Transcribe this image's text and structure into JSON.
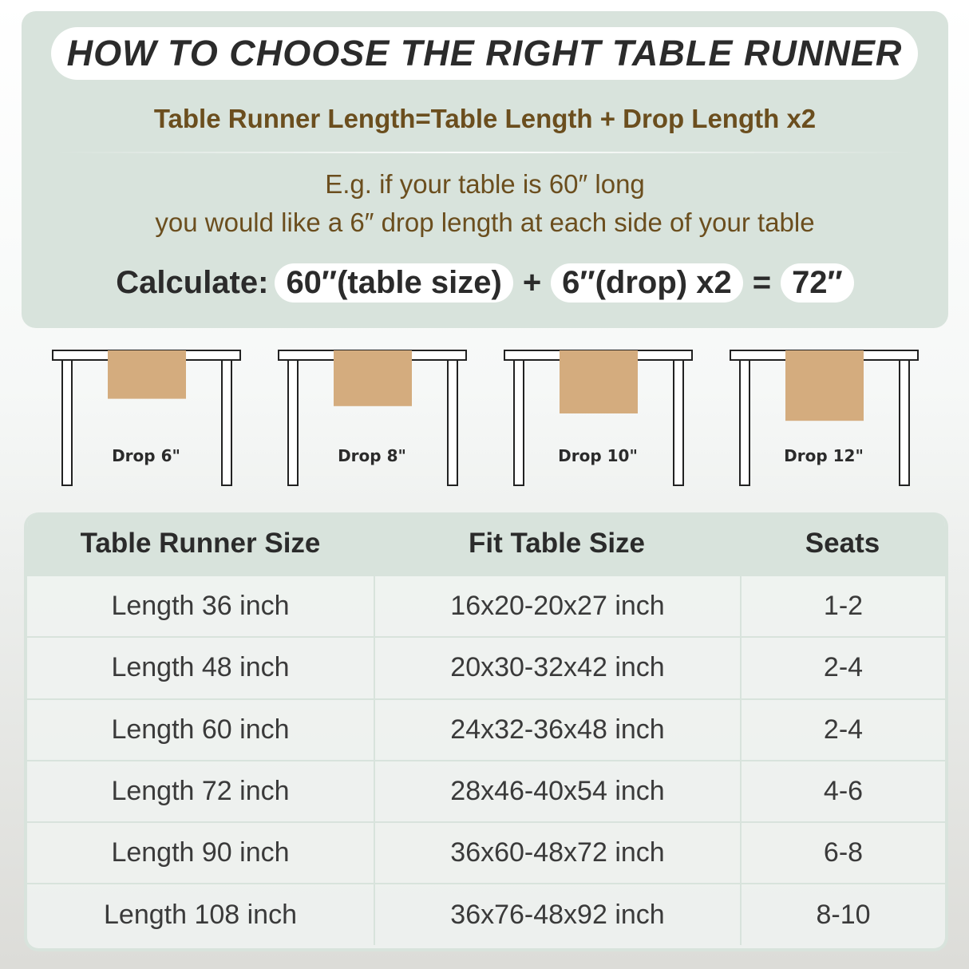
{
  "title": "HOW TO CHOOSE THE RIGHT TABLE RUNNER",
  "formula": "Table Runner Length=Table Length + Drop Length x2",
  "example": {
    "line1": "E.g. if your table is 60″ long",
    "line2": "you would like a 6″ drop length at each side of your table"
  },
  "calculate": {
    "label": "Calculate:",
    "table": "60″(table size)",
    "plus": "+",
    "drop": "6″(drop) x2",
    "equals": "=",
    "result": "72″"
  },
  "colors": {
    "panel": "#d8e3dc",
    "runner": "#d4ac7e",
    "brown_text": "#6b4e1e"
  },
  "drops": [
    {
      "label": "Drop 6\"",
      "inches": 6
    },
    {
      "label": "Drop 8\"",
      "inches": 8
    },
    {
      "label": "Drop 10\"",
      "inches": 10
    },
    {
      "label": "Drop 12\"",
      "inches": 12
    }
  ],
  "table": {
    "headers": [
      "Table Runner Size",
      "Fit Table Size",
      "Seats"
    ],
    "rows": [
      [
        "Length 36 inch",
        "16x20-20x27 inch",
        "1-2"
      ],
      [
        "Length 48 inch",
        "20x30-32x42 inch",
        "2-4"
      ],
      [
        "Length 60 inch",
        "24x32-36x48 inch",
        "2-4"
      ],
      [
        "Length 72 inch",
        "28x46-40x54 inch",
        "4-6"
      ],
      [
        "Length 90 inch",
        "36x60-48x72 inch",
        "6-8"
      ],
      [
        "Length 108 inch",
        "36x76-48x92 inch",
        "8-10"
      ]
    ]
  }
}
